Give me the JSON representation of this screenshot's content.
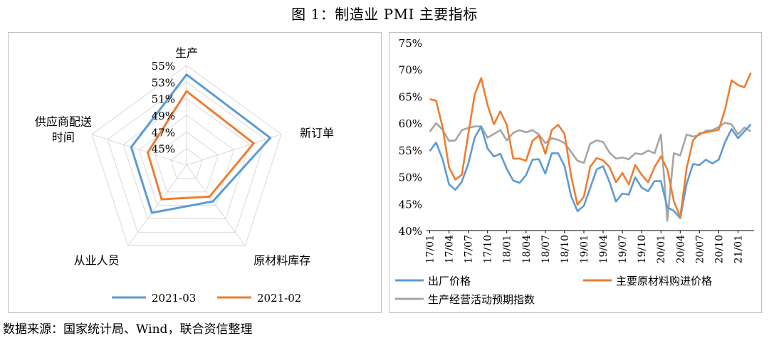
{
  "figure_title": "图 1：制造业 PMI 主要指标",
  "source_note": "数据来源：国家统计局、Wind，联合资信整理",
  "colors": {
    "series_a": "#5b9bd5",
    "series_b": "#ed7d31",
    "series_c": "#a5a5a5",
    "grid": "#d9d9d9"
  },
  "chart_data": [
    {
      "type": "radar",
      "axes": [
        "生产",
        "新订单",
        "原材料库存",
        "从业人员",
        "供应商配送\n时间"
      ],
      "rlim": [
        43,
        55
      ],
      "r_ticks": [
        45,
        47,
        49,
        51,
        53,
        55
      ],
      "tick_labels": [
        "45%",
        "47%",
        "49%",
        "51%",
        "53%",
        "55%"
      ],
      "series": [
        {
          "name": "2021-03",
          "values": [
            53.9,
            53.6,
            48.4,
            50.1,
            50.0
          ]
        },
        {
          "name": "2021-02",
          "values": [
            51.9,
            51.5,
            47.7,
            48.1,
            47.9
          ]
        }
      ],
      "legend_position": "bottom"
    },
    {
      "type": "line",
      "ylim": [
        40,
        75
      ],
      "y_ticks": [
        40,
        45,
        50,
        55,
        60,
        65,
        70,
        75
      ],
      "y_tick_labels": [
        "40%",
        "45%",
        "50%",
        "55%",
        "60%",
        "65%",
        "70%",
        "75%"
      ],
      "x": [
        "17/01",
        "17/02",
        "17/03",
        "17/04",
        "17/05",
        "17/06",
        "17/07",
        "17/08",
        "17/09",
        "17/10",
        "17/11",
        "17/12",
        "18/01",
        "18/02",
        "18/03",
        "18/04",
        "18/05",
        "18/06",
        "18/07",
        "18/08",
        "18/09",
        "18/10",
        "18/11",
        "18/12",
        "19/01",
        "19/02",
        "19/03",
        "19/04",
        "19/05",
        "19/06",
        "19/07",
        "19/08",
        "19/09",
        "19/10",
        "19/11",
        "19/12",
        "20/01",
        "20/02",
        "20/03",
        "20/04",
        "20/05",
        "20/06",
        "20/07",
        "20/08",
        "20/09",
        "20/10",
        "20/11",
        "20/12",
        "21/01",
        "21/02",
        "21/03"
      ],
      "x_tick_labels": [
        "17/01",
        "17/04",
        "17/07",
        "17/10",
        "18/01",
        "18/04",
        "18/07",
        "18/10",
        "19/01",
        "19/04",
        "19/07",
        "19/10",
        "20/01",
        "20/04",
        "20/07",
        "20/10",
        "21/01"
      ],
      "series": [
        {
          "name": "出厂价格",
          "values": [
            54.8,
            56.4,
            53.3,
            48.6,
            47.6,
            49.1,
            52.4,
            57.3,
            59.4,
            55.3,
            53.8,
            54.3,
            51.5,
            49.3,
            48.9,
            50.3,
            53.2,
            53.3,
            50.6,
            54.4,
            54.4,
            52.0,
            46.5,
            43.6,
            44.6,
            48.0,
            51.4,
            52.0,
            49.0,
            45.4,
            46.9,
            46.7,
            49.9,
            48.0,
            47.3,
            49.2,
            49.2,
            44.3,
            43.7,
            42.3,
            48.7,
            52.4,
            52.2,
            53.2,
            52.5,
            53.2,
            56.5,
            58.9,
            57.2,
            58.5,
            59.8
          ]
        },
        {
          "name": "主要原材料购进价格",
          "values": [
            64.5,
            64.2,
            59.3,
            51.8,
            49.5,
            50.4,
            57.9,
            65.3,
            68.4,
            63.4,
            59.8,
            62.2,
            59.7,
            53.4,
            53.4,
            53.0,
            56.7,
            57.7,
            54.3,
            58.7,
            59.7,
            58.0,
            50.3,
            44.8,
            46.3,
            51.9,
            53.5,
            53.1,
            51.8,
            49.0,
            50.7,
            48.6,
            52.2,
            50.4,
            49.0,
            51.8,
            53.8,
            51.4,
            45.5,
            42.5,
            51.6,
            56.8,
            58.1,
            58.3,
            58.5,
            58.8,
            62.6,
            68.0,
            67.1,
            66.7,
            69.4
          ]
        },
        {
          "name": "生产经营活动预期指数",
          "values": [
            58.4,
            60.0,
            58.8,
            56.7,
            56.8,
            58.7,
            59.1,
            59.4,
            59.4,
            57.3,
            58.0,
            58.7,
            56.8,
            58.2,
            58.7,
            58.3,
            58.7,
            57.9,
            56.3,
            57.2,
            56.9,
            56.3,
            54.7,
            53.0,
            52.6,
            56.2,
            56.8,
            56.5,
            54.5,
            53.4,
            53.6,
            53.3,
            54.4,
            54.2,
            54.9,
            54.4,
            57.9,
            41.8,
            54.4,
            54.0,
            57.9,
            57.5,
            57.8,
            58.6,
            58.7,
            59.3,
            60.1,
            59.8,
            57.9,
            59.2,
            58.5
          ]
        }
      ],
      "legend_position": "bottom"
    }
  ]
}
